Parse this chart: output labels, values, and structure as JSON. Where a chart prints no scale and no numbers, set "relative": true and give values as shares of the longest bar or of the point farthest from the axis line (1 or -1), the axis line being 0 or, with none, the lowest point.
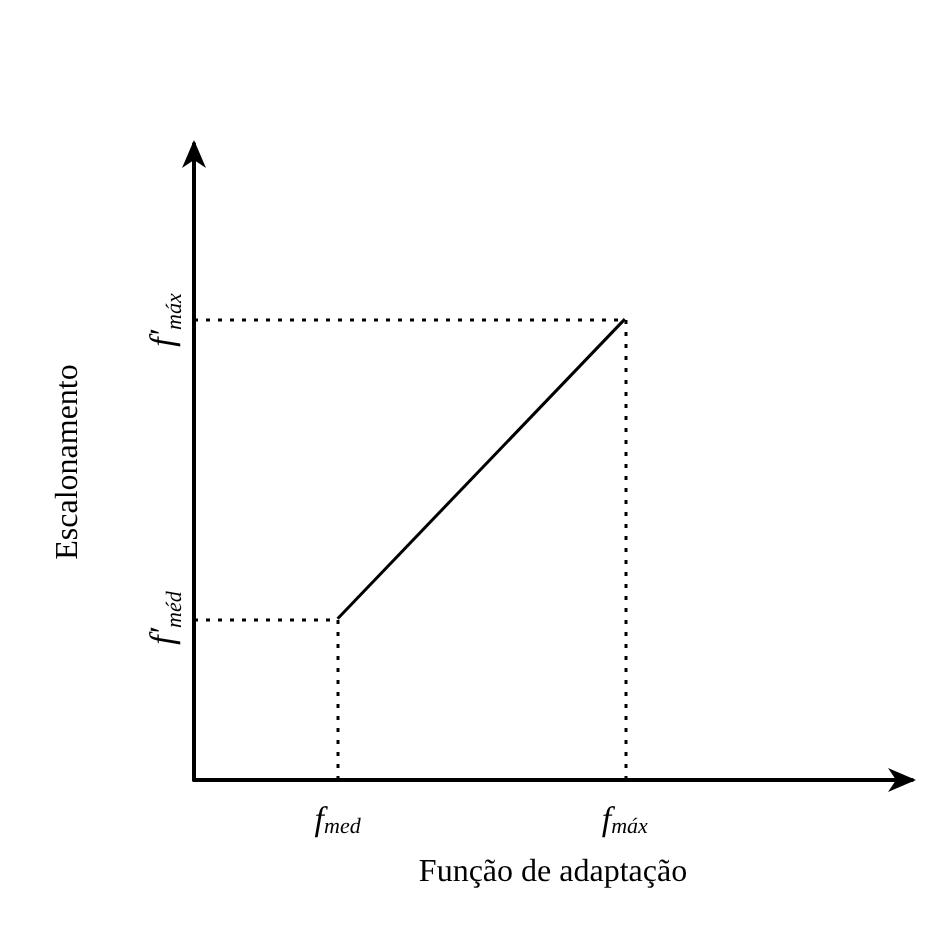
{
  "chart_data": {
    "type": "line",
    "xlabel": "Função de adaptação",
    "ylabel": "Escalonamento",
    "relative": true,
    "categories": [
      null,
      null,
      "f$_{med}$",
      null,
      null,
      null,
      "f$_{máx}$",
      null,
      null,
      null,
      null
    ],
    "values": [
      null,
      null,
      0.35,
      null,
      null,
      null,
      1,
      null,
      null,
      null,
      null
    ],
    "color": "#000000",
    "marker": "none",
    "line_style": "solid",
    "ref_lines": [
      {
        "axis": "x",
        "value": "f$_{med}$",
        "line_style": "dotted"
      },
      {
        "axis": "x",
        "value": "f$_{máx}$",
        "line_style": "dotted"
      },
      {
        "axis": "y",
        "value": 0.35,
        "label": "f′$_{méd}$",
        "line_style": "dotted"
      },
      {
        "axis": "y",
        "value": 1,
        "label": "f′$_{máx}$",
        "line_style": "dotted"
      }
    ]
  }
}
